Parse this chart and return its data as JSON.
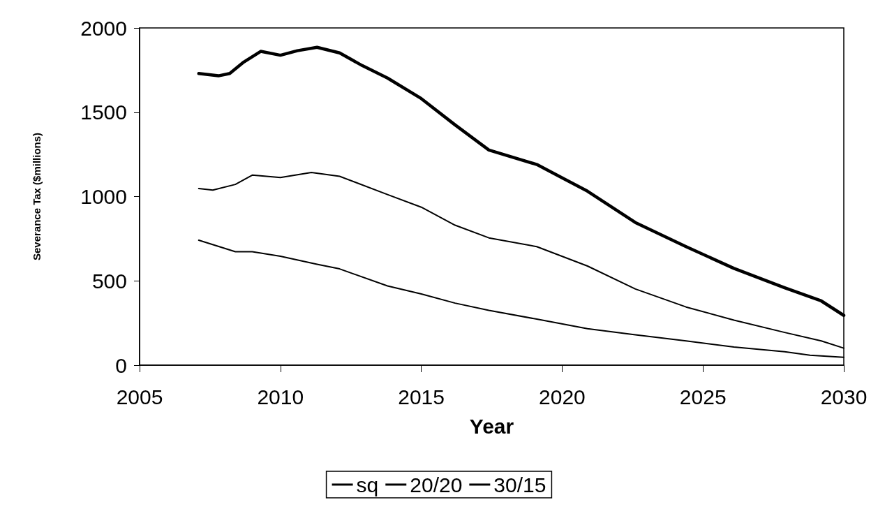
{
  "chart_data": {
    "type": "line",
    "xlabel": "Year",
    "ylabel": "Severance Tax ($millions)",
    "xlim": [
      2005,
      2030
    ],
    "xticks": [
      2005,
      2010,
      2015,
      2020,
      2025,
      2030
    ],
    "ylim": [
      0,
      2000
    ],
    "yticks": [
      0,
      500,
      1000,
      1500,
      2000
    ],
    "grid": false,
    "legend": "bottom",
    "marker": "none",
    "line_style": "solid",
    "series": [
      {
        "name": "sq",
        "color": "#000000",
        "x": [
          2007.1,
          2008.4,
          2009.0,
          2010.0,
          2011.3,
          2012.1,
          2013.8,
          2015.0,
          2016.2,
          2017.4,
          2019.1,
          2020.9,
          2022.6,
          2024.4,
          2026.1,
          2027.9,
          2028.8,
          2030.0
        ],
        "values": [
          741,
          673,
          673,
          646,
          598,
          571,
          470,
          422,
          368,
          325,
          273,
          216,
          180,
          144,
          108,
          80,
          59,
          47
        ]
      },
      {
        "name": "20/20",
        "color": "#000000",
        "x": [
          2007.1,
          2007.6,
          2008.4,
          2009.0,
          2010.0,
          2011.1,
          2012.1,
          2013.8,
          2015.0,
          2016.2,
          2017.4,
          2019.1,
          2020.9,
          2022.6,
          2024.4,
          2026.1,
          2027.9,
          2029.2,
          2030.0
        ],
        "values": [
          1048,
          1038,
          1072,
          1127,
          1113,
          1143,
          1120,
          1012,
          937,
          830,
          755,
          703,
          588,
          452,
          345,
          267,
          194,
          144,
          101
        ]
      },
      {
        "name": "30/15",
        "color": "#000000",
        "x": [
          2007.1,
          2007.8,
          2008.2,
          2008.7,
          2009.3,
          2010.0,
          2010.6,
          2011.3,
          2012.1,
          2012.9,
          2013.8,
          2015.0,
          2016.2,
          2017.4,
          2019.1,
          2020.9,
          2022.6,
          2024.4,
          2026.1,
          2027.9,
          2029.2,
          2030.0
        ],
        "values": [
          1730,
          1716,
          1730,
          1798,
          1861,
          1838,
          1865,
          1885,
          1852,
          1777,
          1703,
          1581,
          1425,
          1276,
          1190,
          1032,
          846,
          703,
          574,
          459,
          381,
          295
        ]
      }
    ]
  }
}
